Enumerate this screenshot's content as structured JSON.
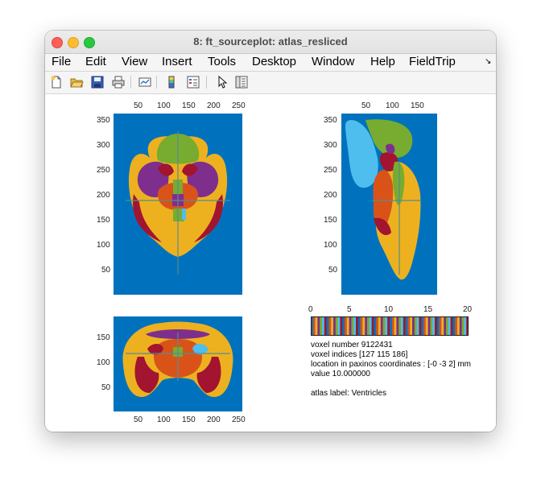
{
  "window": {
    "title": "8: ft_sourceplot: atlas_resliced"
  },
  "menu": [
    "File",
    "Edit",
    "View",
    "Insert",
    "Tools",
    "Desktop",
    "Window",
    "Help",
    "FieldTrip"
  ],
  "toolbar": {
    "icons": [
      "new-figure-icon",
      "open-file-icon",
      "save-icon",
      "print-icon",
      "link-plot-icon",
      "colorbar-icon",
      "legend-icon",
      "edit-plot-arrow-icon",
      "property-inspector-icon"
    ]
  },
  "axes_ticks": {
    "coronal_x": [
      "50",
      "100",
      "150",
      "200",
      "250"
    ],
    "coronal_y": [
      "350",
      "300",
      "250",
      "200",
      "150",
      "100",
      "50"
    ],
    "sagittal_x": [
      "50",
      "100",
      "150"
    ],
    "sagittal_y": [
      "350",
      "300",
      "250",
      "200",
      "150",
      "100",
      "50"
    ],
    "axial_x": [
      "50",
      "100",
      "150",
      "200",
      "250"
    ],
    "axial_y": [
      "150",
      "100",
      "50"
    ]
  },
  "colorbar": {
    "ticks": [
      "0",
      "5",
      "10",
      "15",
      "20"
    ],
    "range": [
      0,
      20
    ],
    "colors": [
      "#0072bd",
      "#d95319",
      "#edb120",
      "#7e2f8e",
      "#77ac30",
      "#4dbeee",
      "#a2142f"
    ]
  },
  "info": {
    "voxel_number": "voxel number 9122431",
    "voxel_indices": "voxel indices [127 115 186]",
    "location": "location in paxinos coordinates : [-0 -3 2] mm",
    "value": "value 10.000000",
    "atlas_label": "atlas label: Ventricles"
  },
  "colors": {
    "background": "#0072bd",
    "orange": "#d95319",
    "yellow": "#edb120",
    "purple": "#7e2f8e",
    "green": "#77ac30",
    "lightblue": "#4dbeee",
    "darkred": "#a2142f"
  }
}
